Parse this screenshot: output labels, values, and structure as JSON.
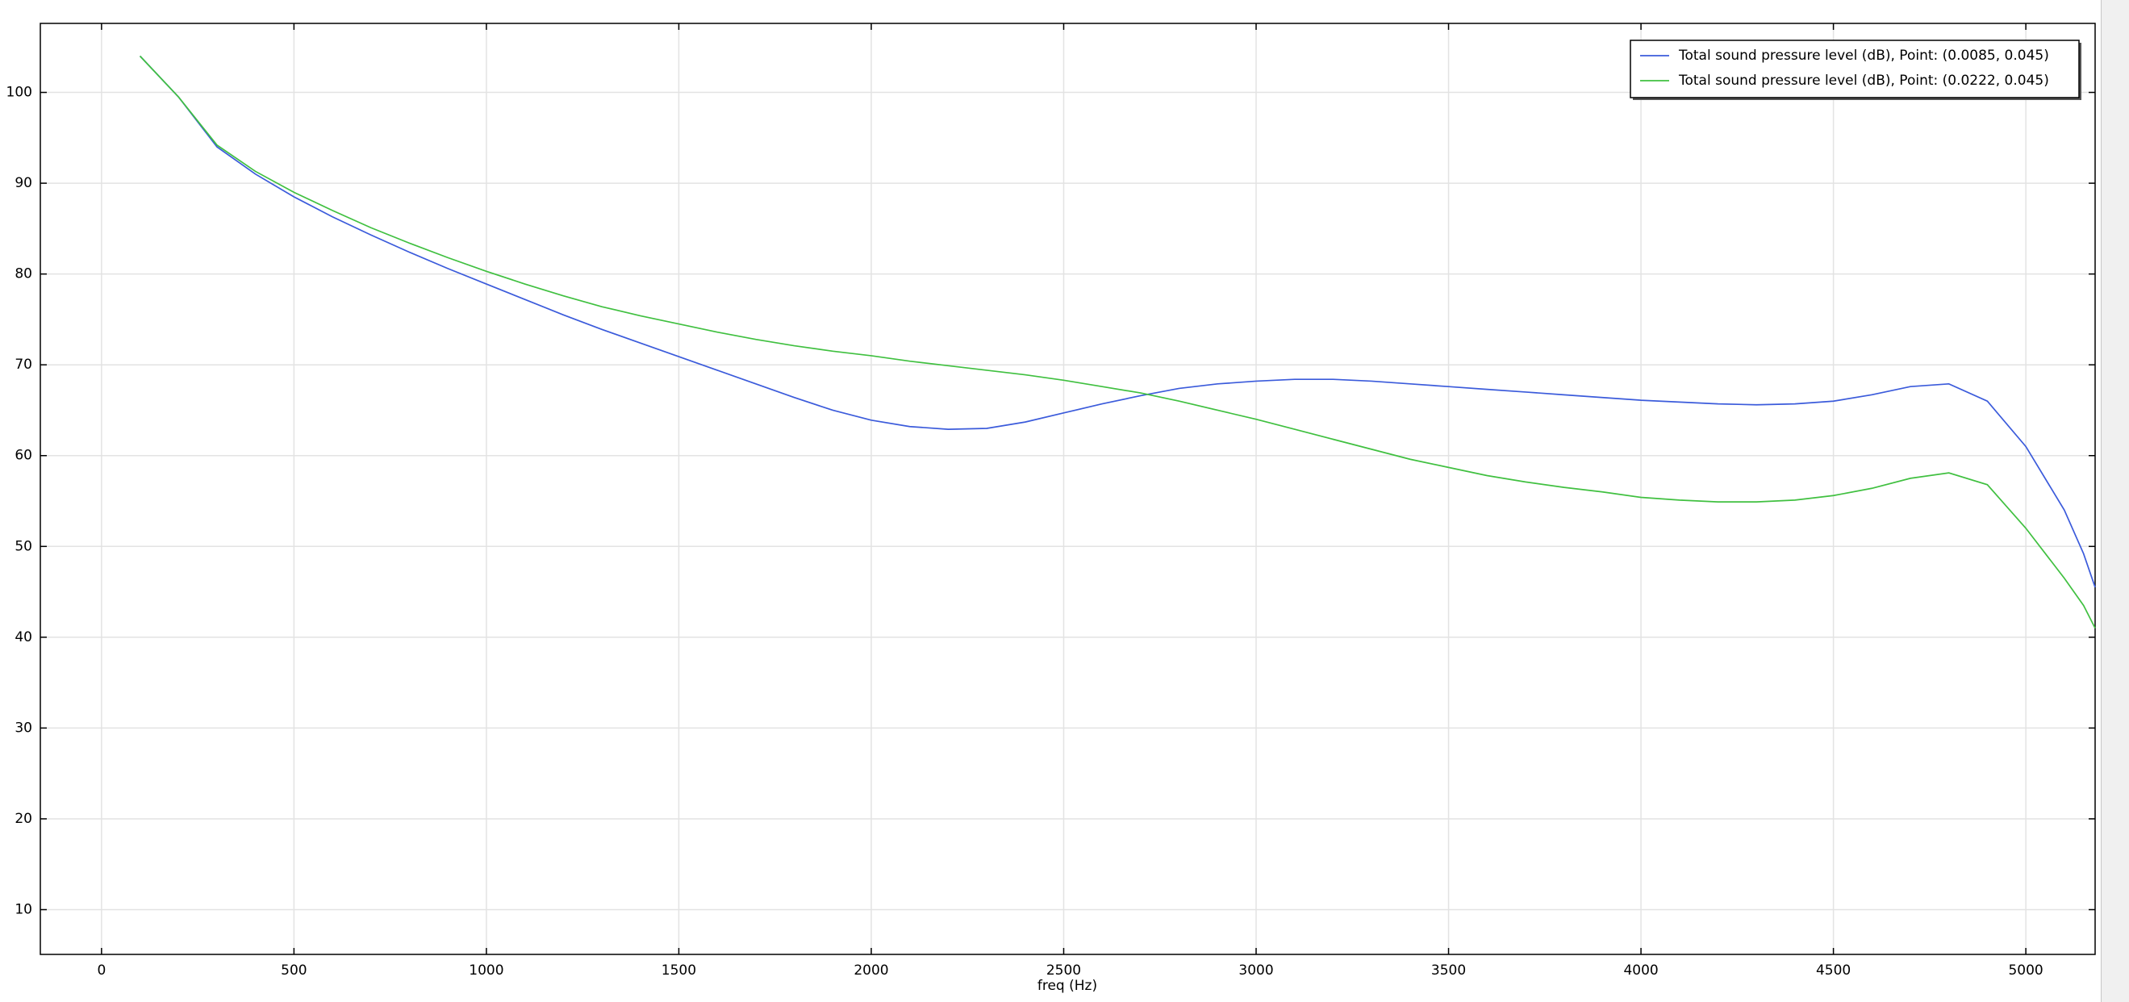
{
  "chart_data": {
    "type": "line",
    "xlabel": "freq (Hz)",
    "x": [
      100,
      200,
      300,
      400,
      500,
      600,
      700,
      800,
      900,
      1000,
      1100,
      1200,
      1300,
      1400,
      1500,
      1600,
      1700,
      1800,
      1900,
      2000,
      2100,
      2200,
      2300,
      2400,
      2500,
      2600,
      2700,
      2800,
      2900,
      3000,
      3100,
      3200,
      3300,
      3400,
      3500,
      3600,
      3700,
      3800,
      3900,
      4000,
      4100,
      4200,
      4300,
      4400,
      4500,
      4600,
      4700,
      4800,
      4900,
      5000,
      5100,
      5150,
      5180
    ],
    "series": [
      {
        "name": "Total sound pressure level (dB), Point: (0.0085, 0.045)",
        "color": "#3b5bdb",
        "values": [
          104,
          99.5,
          94,
          91,
          88.5,
          86.3,
          84.3,
          82.4,
          80.6,
          78.9,
          77.2,
          75.5,
          73.9,
          72.4,
          70.9,
          69.4,
          67.9,
          66.4,
          65,
          63.9,
          63.2,
          62.9,
          63,
          63.7,
          64.7,
          65.7,
          66.6,
          67.4,
          67.9,
          68.2,
          68.4,
          68.4,
          68.2,
          67.9,
          67.6,
          67.3,
          67,
          66.7,
          66.4,
          66.1,
          65.9,
          65.7,
          65.6,
          65.7,
          66,
          66.7,
          67.6,
          67.9,
          66,
          61,
          54,
          49.2,
          45.5
        ]
      },
      {
        "name": "Total sound pressure level (dB), Point: (0.0222, 0.045)",
        "color": "#40c040",
        "values": [
          104,
          99.5,
          94.2,
          91.3,
          89,
          87,
          85.1,
          83.4,
          81.8,
          80.3,
          78.9,
          77.6,
          76.4,
          75.4,
          74.5,
          73.6,
          72.8,
          72.1,
          71.5,
          71,
          70.4,
          69.9,
          69.4,
          68.9,
          68.3,
          67.6,
          66.9,
          66,
          65,
          64,
          62.9,
          61.8,
          60.7,
          59.6,
          58.7,
          57.8,
          57.1,
          56.5,
          56,
          55.4,
          55.1,
          54.9,
          54.9,
          55.1,
          55.6,
          56.4,
          57.5,
          58.1,
          56.8,
          52,
          46.5,
          43.5,
          41
        ]
      }
    ],
    "xlim": [
      -159,
      5180
    ],
    "ylim": [
      5.07,
      107.6
    ],
    "xticks": [
      0,
      500,
      1000,
      1500,
      2000,
      2500,
      3000,
      3500,
      4000,
      4500,
      5000
    ],
    "yticks": [
      10,
      20,
      30,
      40,
      50,
      60,
      70,
      80,
      90,
      100
    ],
    "grid": true,
    "legend": "upper right"
  }
}
